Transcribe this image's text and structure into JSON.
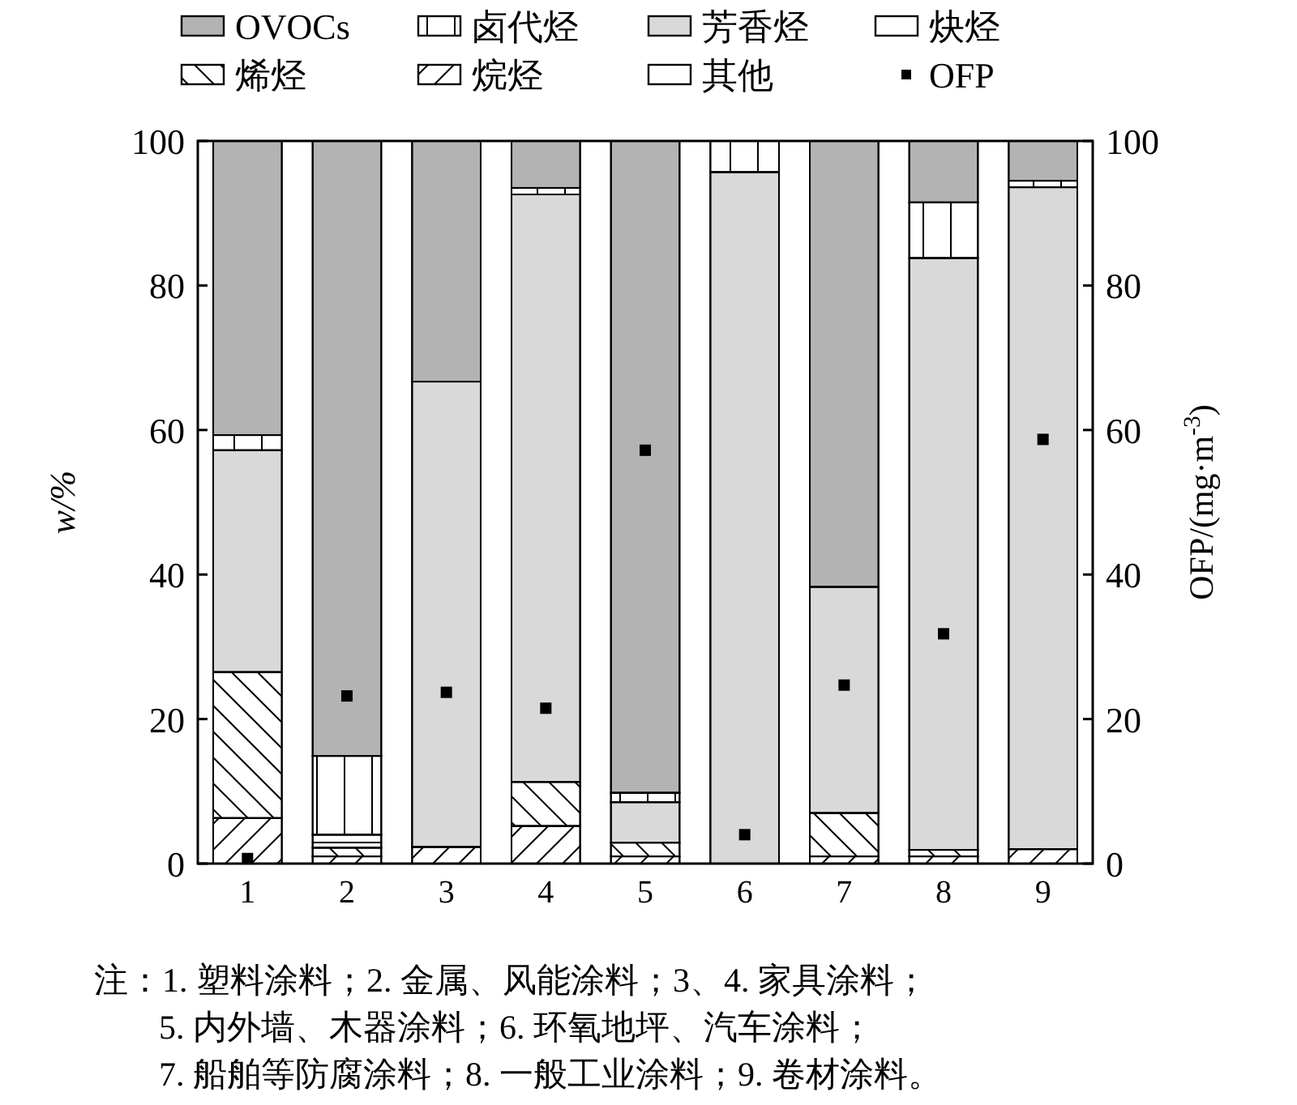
{
  "chart_data": {
    "type": "bar",
    "stacked": true,
    "categories": [
      "1",
      "2",
      "3",
      "4",
      "5",
      "6",
      "7",
      "8",
      "9"
    ],
    "series": [
      {
        "name": "其他",
        "color": "#ffffff",
        "values": [
          0,
          0,
          0,
          0,
          0,
          0,
          0,
          0,
          0
        ]
      },
      {
        "name": "烷烃",
        "color": "#ffffff",
        "values": [
          6.3,
          1.0,
          2.3,
          5.2,
          1.0,
          0,
          1.0,
          1.0,
          2.0
        ]
      },
      {
        "name": "烯烃",
        "color": "#ffffff",
        "values": [
          20.2,
          1.2,
          0,
          6.1,
          1.9,
          0,
          6.0,
          0.9,
          0
        ]
      },
      {
        "name": "炔烃",
        "color": "#ffffff",
        "values": [
          0,
          1.8,
          0,
          0,
          0,
          0,
          0,
          0,
          0
        ]
      },
      {
        "name": "芳香烃",
        "color": "#d9d9d9",
        "values": [
          30.7,
          0,
          64.4,
          81.3,
          5.6,
          95.7,
          31.3,
          81.9,
          91.6
        ]
      },
      {
        "name": "卤代烃",
        "color": "#ffffff",
        "values": [
          2.1,
          10.9,
          0,
          0.9,
          1.3,
          4.3,
          0,
          7.7,
          0.9
        ]
      },
      {
        "name": "OVOCs",
        "color": "#b3b3b3",
        "values": [
          40.7,
          85.1,
          33.3,
          6.5,
          90.2,
          0,
          61.7,
          8.5,
          5.5
        ]
      },
      {
        "name": "OFP",
        "type": "scatter",
        "axis": "y2",
        "marker": "square",
        "color": "#000000",
        "values": [
          0.7,
          23.2,
          23.7,
          21.5,
          57.2,
          4.0,
          24.7,
          31.8,
          58.7
        ]
      }
    ],
    "ylabel": "w/%",
    "y2label": "OFP/(mg·m$^{-3}$)",
    "ylim": [
      0,
      100
    ],
    "yticks": [
      0,
      20,
      40,
      60,
      80,
      100
    ],
    "y2lim": [
      0,
      100
    ],
    "y2ticks": [
      0,
      20,
      40,
      60,
      80,
      100
    ],
    "legend": "top",
    "grid": false,
    "annotations": [
      "注：1. 塑料涂料；2. 金属、风能涂料；3、4. 家具涂料；",
      "5. 内外墙、木器涂料；6. 环氧地坪、汽车涂料；",
      "7. 船舶等防腐涂料；8. 一般工业涂料；9. 卷材涂料。"
    ]
  }
}
